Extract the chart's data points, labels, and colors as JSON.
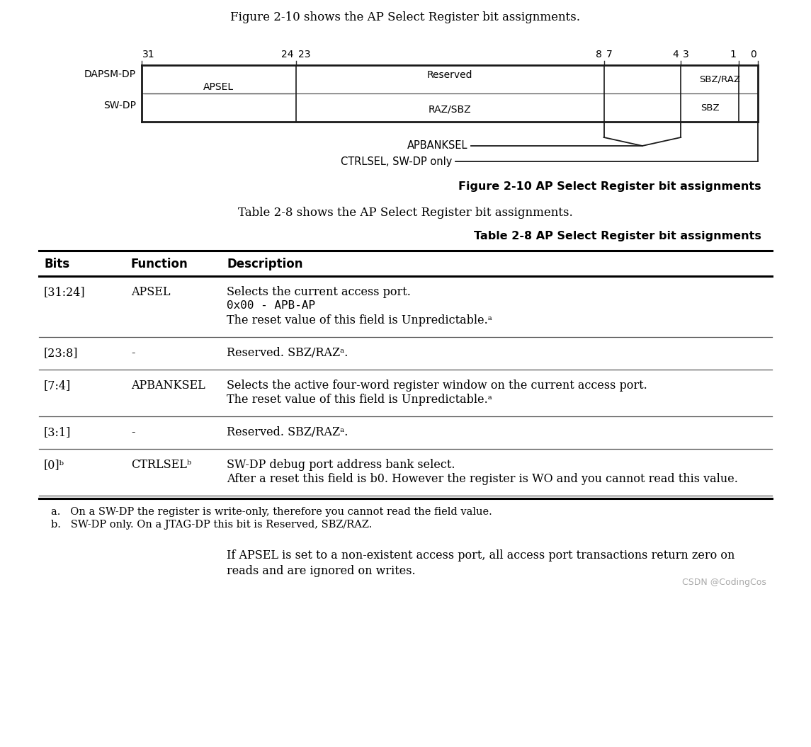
{
  "fig_title": "Figure 2-10 shows the AP Select Register bit assignments.",
  "fig_caption": "Figure 2-10 AP Select Register bit assignments",
  "table_intro": "Table 2-8 shows the AP Select Register bit assignments.",
  "table_caption": "Table 2-8 AP Select Register bit assignments",
  "row1_label": "DAPSM-DP",
  "row2_label": "SW-DP",
  "apbanksel_label": "APBANKSEL",
  "ctrlsel_label": "CTRLSEL, SW-DP only",
  "table_headers": [
    "Bits",
    "Function",
    "Description"
  ],
  "table_rows": [
    {
      "bits": "[31:24]",
      "function": "APSEL",
      "description": [
        "Selects the current access port.",
        "0x00 - APB-AP",
        "The reset value of this field is Unpredictable.ᵃ"
      ]
    },
    {
      "bits": "[23:8]",
      "function": "-",
      "description": [
        "Reserved. SBZ/RAZᵃ."
      ]
    },
    {
      "bits": "[7:4]",
      "function": "APBANKSEL",
      "description": [
        "Selects the active four-word register window on the current access port.",
        "The reset value of this field is Unpredictable.ᵃ"
      ]
    },
    {
      "bits": "[3:1]",
      "function": "-",
      "description": [
        "Reserved. SBZ/RAZᵃ."
      ]
    },
    {
      "bits": "[0]ᵇ",
      "function": "CTRLSELᵇ",
      "description": [
        "SW-DP debug port address bank select.",
        "After a reset this field is b0. However the register is WO and you cannot read this value."
      ]
    }
  ],
  "footnotes": [
    "a.   On a SW-DP the register is write-only, therefore you cannot read the field value.",
    "b.   SW-DP only. On a JTAG-DP this bit is Reserved, SBZ/RAZ."
  ],
  "footer_text": "If APSEL is set to a non-existent access port, all access port transactions return zero on\nreads and are ignored on writes.",
  "csdn_watermark": "CSDN @CodingCos",
  "bg_color": "#ffffff",
  "text_color": "#000000",
  "line_color": "#1a1a1a"
}
